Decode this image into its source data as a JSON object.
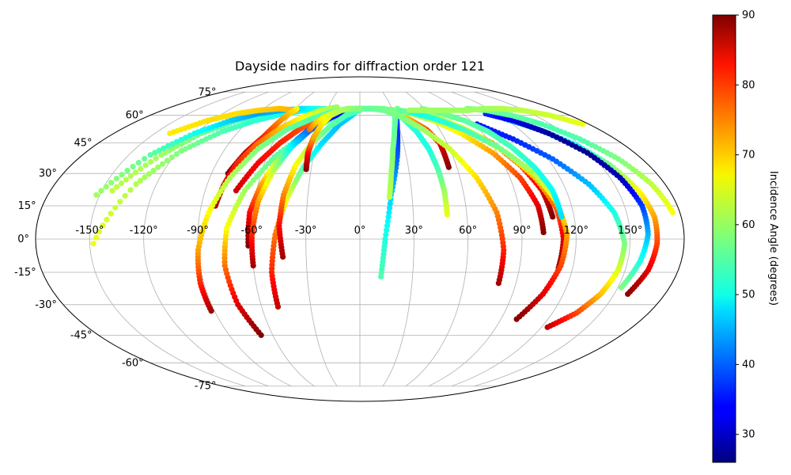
{
  "chart_data": {
    "type": "scatter",
    "projection": "mollweide",
    "title": "Dayside nadirs for diffraction order 121",
    "grid": true,
    "lon_ticks": [
      -150,
      -120,
      -90,
      -60,
      -30,
      0,
      30,
      60,
      90,
      120,
      150
    ],
    "lat_ticks": [
      -75,
      -60,
      -45,
      -30,
      -15,
      0,
      15,
      30,
      45,
      60,
      75
    ],
    "lon_tick_labels": [
      "-150°",
      "-120°",
      "-90°",
      "-60°",
      "-30°",
      "0°",
      "30°",
      "60°",
      "90°",
      "120°",
      "150°"
    ],
    "lat_tick_labels": [
      "-75°",
      "-60°",
      "-45°",
      "-30°",
      "-15°",
      "0°",
      "15°",
      "30°",
      "45°",
      "60°",
      "75°"
    ],
    "colorbar": {
      "label": "Incidence Angle (degrees)",
      "colormap": "jet",
      "range": [
        26,
        90
      ],
      "ticks": [
        30,
        40,
        50,
        60,
        70,
        80,
        90
      ]
    },
    "series": [
      {
        "lon": [
          -144,
          -129,
          -116,
          -100,
          -83,
          -65,
          -48,
          -31,
          -15
        ],
        "lat": [
          22,
          39,
          50,
          57,
          61,
          63,
          64,
          63,
          61
        ],
        "incidence": [
          62,
          60,
          57,
          55,
          53,
          52,
          51,
          51,
          52
        ]
      },
      {
        "lon": [
          -148,
          -132,
          -118,
          -102,
          -85,
          -67,
          -50,
          -33,
          -17
        ],
        "lat": [
          -2,
          25,
          41,
          51,
          57,
          61,
          63,
          64,
          63
        ],
        "incidence": [
          65,
          61,
          58,
          55,
          53,
          51,
          50,
          50,
          50
        ]
      },
      {
        "lon": [
          -152,
          -136,
          -121,
          -105,
          -89,
          -71,
          -54,
          -38,
          -21,
          -6
        ],
        "lat": [
          20,
          39,
          50,
          57,
          61,
          63,
          64,
          64,
          63,
          61
        ],
        "incidence": [
          60,
          56,
          51,
          47,
          44,
          45,
          48,
          52,
          56,
          60
        ]
      },
      {
        "lon": [
          -139,
          -124,
          -108,
          -92,
          -75,
          -58
        ],
        "lat": [
          50,
          57,
          61,
          63,
          64,
          63
        ],
        "incidence": [
          67,
          68,
          68,
          69,
          70,
          71
        ]
      },
      {
        "lon": [
          -59,
          -64,
          -69,
          -75,
          -80
        ],
        "lat": [
          64,
          58,
          48,
          40,
          30
        ],
        "incidence": [
          66,
          72,
          80,
          86,
          90
        ]
      },
      {
        "lon": [
          -72,
          -64,
          -55,
          -46,
          -39,
          -31,
          -24
        ],
        "lat": [
          22,
          35,
          45,
          52,
          56,
          60,
          63
        ],
        "incidence": [
          85,
          82,
          80,
          78,
          76,
          74,
          72
        ]
      },
      {
        "lon": [
          -82,
          -80,
          -77,
          -70,
          -60,
          -48,
          -35,
          -22
        ],
        "lat": [
          15,
          25,
          35,
          45,
          53,
          59,
          63,
          65
        ],
        "incidence": [
          88,
          85,
          80,
          75,
          70,
          66,
          62,
          60
        ]
      },
      {
        "lon": [
          -92,
          -92,
          -90,
          -85,
          -78,
          -68,
          -55,
          -40,
          -25,
          -10
        ],
        "lat": [
          -33,
          -20,
          -5,
          12,
          28,
          42,
          52,
          58,
          62,
          64
        ],
        "incidence": [
          88,
          80,
          72,
          66,
          61,
          58,
          56,
          55,
          55,
          55
        ]
      },
      {
        "lon": [
          -68,
          -74,
          -76,
          -74,
          -67,
          -55,
          -40,
          -24,
          -8
        ],
        "lat": [
          -45,
          -30,
          -12,
          5,
          22,
          38,
          50,
          58,
          63
        ],
        "incidence": [
          90,
          84,
          75,
          66,
          60,
          56,
          54,
          54,
          55
        ]
      },
      {
        "lon": [
          -62,
          -62,
          -58,
          -52,
          -44,
          -35,
          -24,
          -12
        ],
        "lat": [
          -3,
          12,
          25,
          37,
          47,
          55,
          60,
          63
        ],
        "incidence": [
          90,
          82,
          72,
          60,
          45,
          36,
          34,
          38
        ]
      },
      {
        "lon": [
          -50,
          -50,
          -47,
          -42,
          -35,
          -26,
          -16,
          -5
        ],
        "lat": [
          -31,
          -15,
          2,
          18,
          33,
          45,
          55,
          61
        ],
        "incidence": [
          86,
          80,
          75,
          65,
          55,
          48,
          46,
          48
        ]
      },
      {
        "lon": [
          -60,
          -60,
          -58,
          -53,
          -46,
          -37,
          -26,
          -15,
          -3
        ],
        "lat": [
          -12,
          2,
          17,
          31,
          43,
          52,
          58,
          62,
          64
        ],
        "incidence": [
          88,
          80,
          72,
          62,
          50,
          40,
          35,
          34,
          36
        ]
      },
      {
        "lon": [
          -43,
          -45,
          -44,
          -40,
          -33,
          -23,
          -12,
          0
        ],
        "lat": [
          -8,
          6,
          20,
          34,
          45,
          54,
          60,
          63
        ],
        "incidence": [
          88,
          82,
          74,
          66,
          60,
          56,
          55,
          55
        ]
      },
      {
        "lon": [
          -33,
          -34,
          -33,
          -30,
          -25,
          -17,
          -7,
          5
        ],
        "lat": [
          32,
          40,
          48,
          55,
          60,
          63,
          64,
          64
        ],
        "incidence": [
          90,
          82,
          72,
          68,
          64,
          60,
          58,
          57
        ]
      },
      {
        "lon": [
          -38,
          -35,
          -30,
          -22,
          -12,
          -2,
          10
        ],
        "lat": [
          52,
          56,
          59,
          62,
          64,
          64,
          64
        ],
        "incidence": [
          76,
          70,
          66,
          62,
          60,
          58,
          57
        ]
      },
      {
        "lon": [
          12,
          14,
          18,
          24,
          28,
          32
        ],
        "lat": [
          -17,
          0,
          20,
          38,
          52,
          62
        ],
        "incidence": [
          55,
          52,
          47,
          40,
          36,
          42
        ]
      },
      {
        "lon": [
          17,
          19,
          22,
          26,
          30,
          35
        ],
        "lat": [
          19,
          30,
          42,
          52,
          60,
          64
        ],
        "incidence": [
          62,
          60,
          58,
          56,
          56,
          57
        ]
      },
      {
        "lon": [
          49,
          49,
          48,
          46,
          42,
          36,
          30,
          22
        ],
        "lat": [
          11,
          22,
          32,
          42,
          51,
          58,
          62,
          64
        ],
        "incidence": [
          65,
          60,
          55,
          52,
          52,
          54,
          55,
          56
        ]
      },
      {
        "lon": [
          55,
          55,
          50,
          42,
          33,
          22,
          12
        ],
        "lat": [
          33,
          45,
          52,
          57,
          61,
          63,
          64
        ],
        "incidence": [
          90,
          84,
          78,
          72,
          68,
          64,
          60
        ]
      },
      {
        "lon": [
          80,
          80,
          77,
          70,
          60,
          48,
          35,
          22,
          10
        ],
        "lat": [
          -20,
          -5,
          12,
          28,
          42,
          52,
          59,
          63,
          64
        ],
        "incidence": [
          88,
          80,
          74,
          68,
          63,
          60,
          58,
          57,
          57
        ]
      },
      {
        "lon": [
          102,
          101,
          96,
          87,
          74,
          60,
          45,
          30,
          15
        ],
        "lat": [
          3,
          15,
          28,
          40,
          50,
          57,
          61,
          63,
          64
        ],
        "incidence": [
          90,
          84,
          78,
          72,
          67,
          63,
          60,
          58,
          57
        ]
      },
      {
        "lon": [
          108,
          106,
          100,
          91,
          78,
          64,
          49,
          33,
          18,
          5
        ],
        "lat": [
          10,
          22,
          34,
          45,
          53,
          59,
          62,
          63,
          64,
          64
        ],
        "incidence": [
          90,
          84,
          78,
          72,
          67,
          63,
          60,
          58,
          57,
          56
        ]
      },
      {
        "lon": [
          112,
          113,
          111,
          105,
          96,
          83,
          68,
          52,
          36
        ],
        "lat": [
          -13,
          0,
          14,
          28,
          40,
          50,
          57,
          61,
          63
        ],
        "incidence": [
          90,
          84,
          76,
          70,
          66,
          62,
          59,
          57,
          56
        ]
      },
      {
        "lon": [
          100,
          108,
          113,
          115,
          112,
          105,
          93,
          78,
          62,
          45
        ],
        "lat": [
          -37,
          -25,
          -12,
          2,
          17,
          31,
          43,
          52,
          58,
          62
        ],
        "incidence": [
          90,
          84,
          78,
          72,
          66,
          61,
          57,
          54,
          52,
          51
        ]
      },
      {
        "lon": [
          124,
          135,
          142,
          146,
          147,
          143,
          135,
          123,
          108,
          92
        ],
        "lat": [
          -41,
          -34,
          -25,
          -14,
          -2,
          12,
          25,
          37,
          47,
          55
        ],
        "incidence": [
          86,
          78,
          70,
          64,
          58,
          52,
          46,
          40,
          36,
          35
        ]
      },
      {
        "lon": [
          158,
          163,
          165,
          165,
          162,
          156,
          147,
          135,
          120
        ],
        "lat": [
          -25,
          -14,
          -2,
          10,
          22,
          34,
          44,
          52,
          58
        ],
        "incidence": [
          89,
          84,
          78,
          72,
          66,
          58,
          50,
          45,
          42
        ]
      },
      {
        "lon": [
          152,
          157,
          160,
          160,
          156,
          149,
          138,
          125,
          110
        ],
        "lat": [
          -22,
          -10,
          2,
          15,
          28,
          40,
          50,
          57,
          61
        ],
        "incidence": [
          58,
          52,
          46,
          38,
          30,
          27,
          28,
          32,
          36
        ]
      },
      {
        "lon": [
          176,
          172,
          165,
          155,
          143,
          130,
          115,
          100
        ],
        "lat": [
          12,
          25,
          37,
          47,
          55,
          60,
          63,
          64
        ],
        "incidence": [
          66,
          62,
          58,
          55,
          55,
          56,
          57,
          58
        ]
      },
      {
        "lon": [
          113,
          112,
          108,
          102,
          95,
          85,
          72,
          58
        ],
        "lat": [
          10,
          22,
          33,
          43,
          51,
          57,
          61,
          64
        ],
        "incidence": [
          48,
          50,
          52,
          54,
          55,
          56,
          57,
          58
        ]
      },
      {
        "lon": [
          175,
          163,
          148,
          132,
          115,
          98,
          80,
          62,
          45
        ],
        "lat": [
          55,
          60,
          63,
          64,
          64,
          63,
          63,
          63,
          63
        ],
        "incidence": [
          65,
          63,
          62,
          61,
          60,
          60,
          60,
          60,
          60
        ]
      }
    ]
  }
}
